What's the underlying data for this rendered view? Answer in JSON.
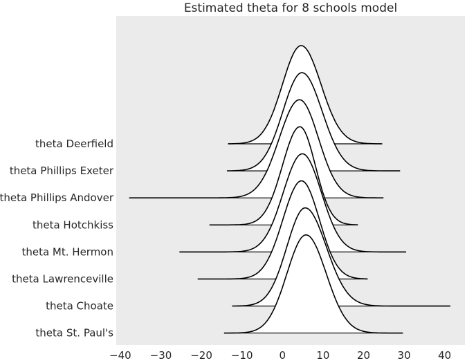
{
  "chart_data": {
    "type": "ridgeline",
    "title": "Estimated theta for 8 schools model",
    "xlabel": "",
    "ylabel": "",
    "xlim": [
      -41,
      45
    ],
    "xticks": [
      -40,
      -30,
      -20,
      -10,
      0,
      10,
      20,
      30,
      40
    ],
    "xtick_labels": [
      "−40",
      "−30",
      "−20",
      "−10",
      "0",
      "10",
      "20",
      "30",
      "40"
    ],
    "grid": false,
    "background": "#ebebeb",
    "fill_color": "#ffffff",
    "line_color": "#000000",
    "series": [
      {
        "name": "theta Deerfield",
        "min": -13.4,
        "max": 24.6,
        "mode": 4.6,
        "sd_left": 4.6,
        "sd_right": 4.9
      },
      {
        "name": "theta Phillips Exeter",
        "min": -13.7,
        "max": 29.0,
        "mode": 4.8,
        "sd_left": 4.7,
        "sd_right": 5.0
      },
      {
        "name": "theta Phillips Andover",
        "min": -37.8,
        "max": 24.9,
        "mode": 4.2,
        "sd_left": 5.0,
        "sd_right": 4.7
      },
      {
        "name": "theta Hotchkiss",
        "min": -18.0,
        "max": 18.6,
        "mode": 4.3,
        "sd_left": 4.3,
        "sd_right": 3.8
      },
      {
        "name": "theta Mt. Hermon",
        "min": -25.4,
        "max": 30.5,
        "mode": 4.9,
        "sd_left": 4.7,
        "sd_right": 4.7
      },
      {
        "name": "theta Lawrenceville",
        "min": -20.9,
        "max": 21.0,
        "mode": 4.7,
        "sd_left": 4.6,
        "sd_right": 4.4
      },
      {
        "name": "theta Choate",
        "min": -12.4,
        "max": 41.4,
        "mode": 5.6,
        "sd_left": 4.5,
        "sd_right": 5.2
      },
      {
        "name": "theta St. Paul's",
        "min": -14.4,
        "max": 29.7,
        "mode": 5.8,
        "sd_left": 4.7,
        "sd_right": 5.0
      }
    ]
  }
}
